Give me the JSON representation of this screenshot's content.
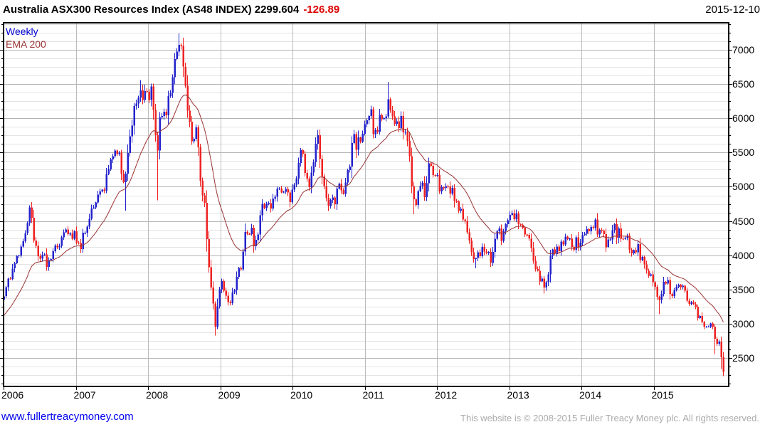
{
  "header": {
    "title": "Australia ASX300 Resources Index (AS48 INDEX) 2299.604",
    "change": "-126.89",
    "date": "2015-12-10"
  },
  "legend": {
    "series": "Weekly",
    "overlay": "EMA 200"
  },
  "footer": {
    "site": "www.fullertreacymoney.com",
    "copyright": "This website is © 2008-2015 Fuller Treacy Money plc. All rights reserved."
  },
  "colors": {
    "up": "#2222CC",
    "down": "#EE2222",
    "ema": "#993333",
    "grid_major": "#B3B3B3",
    "grid_minor": "#E3E3E3",
    "grid_year": "#BBBBBB",
    "change_red": "#DD0000",
    "link_blue": "#0000EE",
    "copyright_gray": "#ABABAB",
    "legend_weekly": "#0000CC",
    "legend_ema": "#993333",
    "border": "#000000"
  },
  "chart_data": {
    "type": "candlestick",
    "frequency": "weekly",
    "title": "Australia ASX300 Resources Index (AS48 INDEX)",
    "last_close": 2299.604,
    "last_change": -126.89,
    "as_of": "2015-12-10",
    "x_range": [
      2006.0,
      2015.945
    ],
    "ylim": [
      2085,
      7395
    ],
    "y_ticks": [
      2500,
      3000,
      3500,
      4000,
      4500,
      5000,
      5500,
      6000,
      6500,
      7000
    ],
    "y_minor_step": 125,
    "x_ticks": [
      2006,
      2007,
      2008,
      2009,
      2010,
      2011,
      2012,
      2013,
      2014,
      2015
    ],
    "ema_label": "EMA 200",
    "ema_span_bars": 23,
    "ema_seed": 3100,
    "noise_pct": 3.0,
    "value_clamp": [
      2960,
      7150
    ],
    "anchors": [
      [
        2006.0,
        3450
      ],
      [
        2006.06,
        3700
      ],
      [
        2006.12,
        3850
      ],
      [
        2006.21,
        4050
      ],
      [
        2006.27,
        4250
      ],
      [
        2006.33,
        4600
      ],
      [
        2006.37,
        4680
      ],
      [
        2006.42,
        4100
      ],
      [
        2006.48,
        3900
      ],
      [
        2006.54,
        4050
      ],
      [
        2006.58,
        3880
      ],
      [
        2006.63,
        3950
      ],
      [
        2006.7,
        4080
      ],
      [
        2006.77,
        4250
      ],
      [
        2006.85,
        4300
      ],
      [
        2006.92,
        4400
      ],
      [
        2007.0,
        4250
      ],
      [
        2007.04,
        4150
      ],
      [
        2007.1,
        4350
      ],
      [
        2007.18,
        4500
      ],
      [
        2007.25,
        4700
      ],
      [
        2007.33,
        4900
      ],
      [
        2007.4,
        5050
      ],
      [
        2007.45,
        5250
      ],
      [
        2007.52,
        5400
      ],
      [
        2007.58,
        5600
      ],
      [
        2007.63,
        5200
      ],
      [
        2007.67,
        5000
      ],
      [
        2007.72,
        5500
      ],
      [
        2007.77,
        5900
      ],
      [
        2007.82,
        6250
      ],
      [
        2007.87,
        6450
      ],
      [
        2007.9,
        6500
      ],
      [
        2007.93,
        6300
      ],
      [
        2007.97,
        6400
      ],
      [
        2008.0,
        6350
      ],
      [
        2008.04,
        6450
      ],
      [
        2008.08,
        5900
      ],
      [
        2008.12,
        5600
      ],
      [
        2008.16,
        6000
      ],
      [
        2008.2,
        6200
      ],
      [
        2008.25,
        6100
      ],
      [
        2008.29,
        6450
      ],
      [
        2008.33,
        6600
      ],
      [
        2008.37,
        6900
      ],
      [
        2008.4,
        7100
      ],
      [
        2008.44,
        6950
      ],
      [
        2008.46,
        6850
      ],
      [
        2008.5,
        6500
      ],
      [
        2008.54,
        6150
      ],
      [
        2008.58,
        5900
      ],
      [
        2008.62,
        5650
      ],
      [
        2008.66,
        5800
      ],
      [
        2008.7,
        5200
      ],
      [
        2008.74,
        4800
      ],
      [
        2008.78,
        4500
      ],
      [
        2008.82,
        4000
      ],
      [
        2008.86,
        3500
      ],
      [
        2008.9,
        3150
      ],
      [
        2008.93,
        3000
      ],
      [
        2008.96,
        3350
      ],
      [
        2009.0,
        3650
      ],
      [
        2009.04,
        3500
      ],
      [
        2009.08,
        3400
      ],
      [
        2009.13,
        3350
      ],
      [
        2009.17,
        3500
      ],
      [
        2009.21,
        3650
      ],
      [
        2009.25,
        3800
      ],
      [
        2009.29,
        3900
      ],
      [
        2009.33,
        4150
      ],
      [
        2009.38,
        4300
      ],
      [
        2009.42,
        4450
      ],
      [
        2009.46,
        4200
      ],
      [
        2009.5,
        4350
      ],
      [
        2009.54,
        4550
      ],
      [
        2009.58,
        4700
      ],
      [
        2009.63,
        4850
      ],
      [
        2009.67,
        4750
      ],
      [
        2009.71,
        4600
      ],
      [
        2009.75,
        4800
      ],
      [
        2009.79,
        4900
      ],
      [
        2009.83,
        4850
      ],
      [
        2009.88,
        4950
      ],
      [
        2009.92,
        4900
      ],
      [
        2009.96,
        4950
      ],
      [
        2010.0,
        5000
      ],
      [
        2010.04,
        5150
      ],
      [
        2010.08,
        5400
      ],
      [
        2010.13,
        5450
      ],
      [
        2010.17,
        5250
      ],
      [
        2010.21,
        5000
      ],
      [
        2010.25,
        5150
      ],
      [
        2010.29,
        5400
      ],
      [
        2010.33,
        5650
      ],
      [
        2010.37,
        5450
      ],
      [
        2010.41,
        5150
      ],
      [
        2010.45,
        4900
      ],
      [
        2010.49,
        4750
      ],
      [
        2010.53,
        4900
      ],
      [
        2010.57,
        4800
      ],
      [
        2010.61,
        4950
      ],
      [
        2010.65,
        5050
      ],
      [
        2010.69,
        4950
      ],
      [
        2010.73,
        5100
      ],
      [
        2010.77,
        5300
      ],
      [
        2010.81,
        5450
      ],
      [
        2010.85,
        5550
      ],
      [
        2010.89,
        5650
      ],
      [
        2010.93,
        5750
      ],
      [
        2010.97,
        5850
      ],
      [
        2011.0,
        5950
      ],
      [
        2011.04,
        6100
      ],
      [
        2011.08,
        6050
      ],
      [
        2011.12,
        5900
      ],
      [
        2011.16,
        5800
      ],
      [
        2011.2,
        5950
      ],
      [
        2011.24,
        6050
      ],
      [
        2011.28,
        6150
      ],
      [
        2011.32,
        6350
      ],
      [
        2011.36,
        6100
      ],
      [
        2011.4,
        5950
      ],
      [
        2011.44,
        6050
      ],
      [
        2011.48,
        5950
      ],
      [
        2011.52,
        5850
      ],
      [
        2011.56,
        5800
      ],
      [
        2011.6,
        5600
      ],
      [
        2011.63,
        5250
      ],
      [
        2011.66,
        4900
      ],
      [
        2011.7,
        4750
      ],
      [
        2011.74,
        4950
      ],
      [
        2011.78,
        5050
      ],
      [
        2011.81,
        4800
      ],
      [
        2011.85,
        5200
      ],
      [
        2011.89,
        5350
      ],
      [
        2011.93,
        5100
      ],
      [
        2011.97,
        5250
      ],
      [
        2012.0,
        5000
      ],
      [
        2012.04,
        4900
      ],
      [
        2012.08,
        4950
      ],
      [
        2012.12,
        5000
      ],
      [
        2012.16,
        4900
      ],
      [
        2012.2,
        4800
      ],
      [
        2012.24,
        4850
      ],
      [
        2012.28,
        4750
      ],
      [
        2012.32,
        4650
      ],
      [
        2012.36,
        4500
      ],
      [
        2012.4,
        4250
      ],
      [
        2012.44,
        4100
      ],
      [
        2012.48,
        3950
      ],
      [
        2012.52,
        3900
      ],
      [
        2012.56,
        4000
      ],
      [
        2012.6,
        4150
      ],
      [
        2012.64,
        4200
      ],
      [
        2012.68,
        4050
      ],
      [
        2012.72,
        3900
      ],
      [
        2012.76,
        4050
      ],
      [
        2012.8,
        4200
      ],
      [
        2012.84,
        4300
      ],
      [
        2012.88,
        4250
      ],
      [
        2012.92,
        4350
      ],
      [
        2012.96,
        4420
      ],
      [
        2013.0,
        4480
      ],
      [
        2013.04,
        4550
      ],
      [
        2013.08,
        4600
      ],
      [
        2013.12,
        4500
      ],
      [
        2013.16,
        4400
      ],
      [
        2013.2,
        4300
      ],
      [
        2013.24,
        4250
      ],
      [
        2013.28,
        4150
      ],
      [
        2013.32,
        4000
      ],
      [
        2013.36,
        3850
      ],
      [
        2013.4,
        3700
      ],
      [
        2013.44,
        3600
      ],
      [
        2013.47,
        3520
      ],
      [
        2013.51,
        3650
      ],
      [
        2013.55,
        3850
      ],
      [
        2013.59,
        4000
      ],
      [
        2013.63,
        4100
      ],
      [
        2013.67,
        4050
      ],
      [
        2013.71,
        4150
      ],
      [
        2013.75,
        4250
      ],
      [
        2013.79,
        4300
      ],
      [
        2013.83,
        4200
      ],
      [
        2013.87,
        4100
      ],
      [
        2013.91,
        4200
      ],
      [
        2013.95,
        4150
      ],
      [
        2014.0,
        4200
      ],
      [
        2014.08,
        4300
      ],
      [
        2014.16,
        4400
      ],
      [
        2014.24,
        4300
      ],
      [
        2014.32,
        4250
      ],
      [
        2014.4,
        4300
      ],
      [
        2014.48,
        4250
      ],
      [
        2014.56,
        4300
      ],
      [
        2014.64,
        4150
      ],
      [
        2014.72,
        4050
      ],
      [
        2014.8,
        3950
      ],
      [
        2014.88,
        3850
      ],
      [
        2014.96,
        3650
      ],
      [
        2015.0,
        3600
      ],
      [
        2015.02,
        3450
      ],
      [
        2015.06,
        3300
      ],
      [
        2015.1,
        3380
      ],
      [
        2015.14,
        3550
      ],
      [
        2015.17,
        3690
      ],
      [
        2015.21,
        3550
      ],
      [
        2015.25,
        3450
      ],
      [
        2015.29,
        3500
      ],
      [
        2015.33,
        3620
      ],
      [
        2015.37,
        3560
      ],
      [
        2015.41,
        3450
      ],
      [
        2015.45,
        3350
      ],
      [
        2015.49,
        3280
      ],
      [
        2015.53,
        3250
      ],
      [
        2015.57,
        3150
      ],
      [
        2015.6,
        3050
      ],
      [
        2015.63,
        3000
      ],
      [
        2015.66,
        2900
      ],
      [
        2015.7,
        2830
      ],
      [
        2015.73,
        2880
      ],
      [
        2015.77,
        2980
      ],
      [
        2015.8,
        2870
      ],
      [
        2015.83,
        2760
      ],
      [
        2015.86,
        2700
      ],
      [
        2015.89,
        2730
      ],
      [
        2015.92,
        2520
      ],
      [
        2015.945,
        2299.604
      ]
    ],
    "wick_events": [
      {
        "t": 2006.35,
        "high": 4730
      },
      {
        "t": 2007.67,
        "low": 4650
      },
      {
        "t": 2007.9,
        "high": 6560
      },
      {
        "t": 2008.12,
        "low": 4800
      },
      {
        "t": 2008.43,
        "high": 7240
      },
      {
        "t": 2008.93,
        "low": 2950
      },
      {
        "t": 2009.14,
        "low": 3270
      },
      {
        "t": 2010.33,
        "high": 5740
      },
      {
        "t": 2011.32,
        "high": 6530
      },
      {
        "t": 2011.66,
        "low": 4600
      },
      {
        "t": 2012.52,
        "low": 3810
      },
      {
        "t": 2013.47,
        "low": 3440
      },
      {
        "t": 2015.05,
        "low": 3140
      },
      {
        "t": 2015.83,
        "low": 2560
      },
      {
        "t": 2015.92,
        "low": 2340
      },
      {
        "t": 2015.945,
        "low": 2255
      }
    ]
  }
}
